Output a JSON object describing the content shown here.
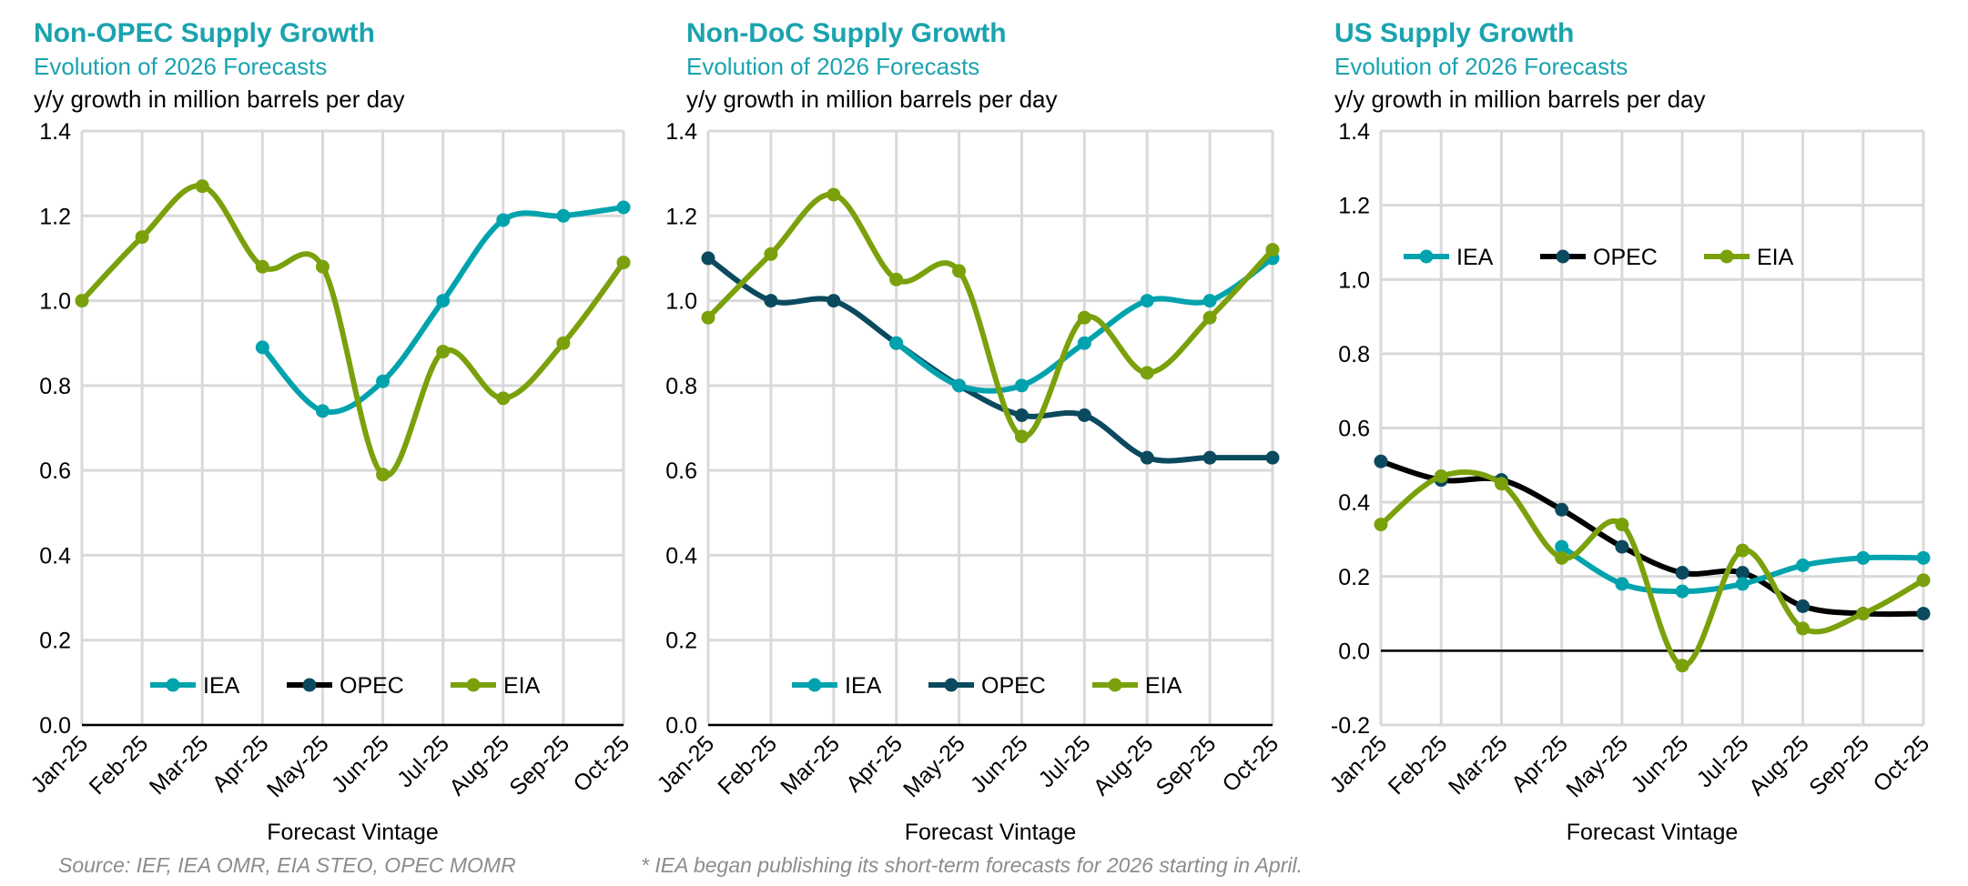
{
  "colors": {
    "IEA": "#00A3AD",
    "OPEC": "#000000",
    "OPEC_dark": "#0B4A5E",
    "EIA": "#7AA10C",
    "title": "#1AA3AE",
    "grid": "#D9D9D9"
  },
  "footer": {
    "source": "Source: IEF, IEA OMR, EIA STEO, OPEC MOMR",
    "note": "* IEA began publishing its short-term forecasts for 2026 starting in April."
  },
  "chart_data": [
    {
      "type": "line",
      "title": "Non-OPEC Supply Growth",
      "subtitle": "Evolution of 2026 Forecasts",
      "ylabel": "y/y growth in million barrels per day",
      "xlabel": "Forecast Vintage",
      "categories": [
        "Jan-25",
        "Feb-25",
        "Mar-25",
        "Apr-25",
        "May-25",
        "Jun-25",
        "Jul-25",
        "Aug-25",
        "Sep-25",
        "Oct-25"
      ],
      "ylim": [
        0,
        1.4
      ],
      "yticks": [
        "0.0",
        "0.2",
        "0.4",
        "0.6",
        "0.8",
        "1.0",
        "1.2",
        "1.4"
      ],
      "grid": true,
      "smooth": true,
      "legend": "bottom-center",
      "series": [
        {
          "name": "IEA",
          "color": "#00A3AD",
          "values": [
            null,
            null,
            null,
            0.89,
            0.74,
            0.81,
            1.0,
            1.19,
            1.2,
            1.22
          ]
        },
        {
          "name": "OPEC",
          "color": "#000000",
          "values": [
            null,
            null,
            null,
            null,
            null,
            null,
            null,
            null,
            null,
            null
          ]
        },
        {
          "name": "EIA",
          "color": "#7AA10C",
          "values": [
            1.0,
            1.15,
            1.27,
            1.08,
            1.08,
            0.59,
            0.88,
            0.77,
            0.9,
            1.09
          ]
        }
      ]
    },
    {
      "type": "line",
      "title": "Non-DoC Supply Growth",
      "subtitle": "Evolution of 2026 Forecasts",
      "ylabel": "y/y growth in million barrels per day",
      "xlabel": "Forecast Vintage",
      "categories": [
        "Jan-25",
        "Feb-25",
        "Mar-25",
        "Apr-25",
        "May-25",
        "Jun-25",
        "Jul-25",
        "Aug-25",
        "Sep-25",
        "Oct-25"
      ],
      "ylim": [
        0,
        1.4
      ],
      "yticks": [
        "0.0",
        "0.2",
        "0.4",
        "0.6",
        "0.8",
        "1.0",
        "1.2",
        "1.4"
      ],
      "grid": true,
      "smooth": true,
      "legend": "bottom-center",
      "series": [
        {
          "name": "IEA",
          "color": "#00A3AD",
          "values": [
            null,
            null,
            null,
            0.9,
            0.8,
            0.8,
            0.9,
            1.0,
            1.0,
            1.1
          ]
        },
        {
          "name": "OPEC",
          "color": "#0B4A5E",
          "values": [
            1.1,
            1.0,
            1.0,
            0.9,
            0.8,
            0.73,
            0.73,
            0.63,
            0.63,
            0.63
          ]
        },
        {
          "name": "EIA",
          "color": "#7AA10C",
          "values": [
            0.96,
            1.11,
            1.25,
            1.05,
            1.07,
            0.68,
            0.96,
            0.83,
            0.96,
            1.12
          ]
        }
      ]
    },
    {
      "type": "line",
      "title": "US Supply Growth",
      "subtitle": "Evolution of 2026 Forecasts",
      "ylabel": "y/y growth in million barrels per day",
      "xlabel": "Forecast Vintage",
      "categories": [
        "Jan-25",
        "Feb-25",
        "Mar-25",
        "Apr-25",
        "May-25",
        "Jun-25",
        "Jul-25",
        "Aug-25",
        "Sep-25",
        "Oct-25"
      ],
      "ylim": [
        -0.2,
        1.4
      ],
      "yticks": [
        "-0.2",
        "0.0",
        "0.2",
        "0.4",
        "0.6",
        "0.8",
        "1.0",
        "1.2",
        "1.4"
      ],
      "grid": true,
      "smooth": true,
      "legend": "top-center",
      "series": [
        {
          "name": "IEA",
          "color": "#00A3AD",
          "values": [
            null,
            null,
            null,
            0.28,
            0.18,
            0.16,
            0.18,
            0.23,
            0.25,
            0.25
          ]
        },
        {
          "name": "OPEC",
          "color": "#000000",
          "marker": "#0B4A5E",
          "values": [
            0.51,
            0.46,
            0.46,
            0.38,
            0.28,
            0.21,
            0.21,
            0.12,
            0.1,
            0.1
          ]
        },
        {
          "name": "EIA",
          "color": "#7AA10C",
          "values": [
            0.34,
            0.47,
            0.45,
            0.25,
            0.34,
            -0.04,
            0.27,
            0.06,
            0.1,
            0.19
          ]
        }
      ]
    }
  ]
}
